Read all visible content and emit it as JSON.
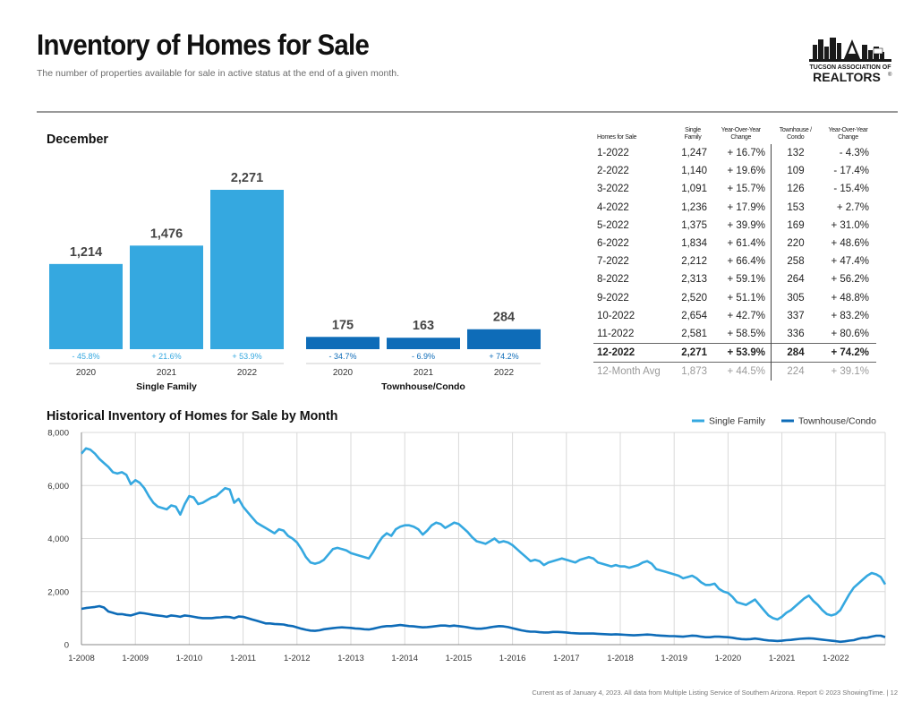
{
  "header": {
    "title": "Inventory of Homes for Sale",
    "subtitle": "The number of properties available for sale in active status at the end of a given month."
  },
  "logo": {
    "line1": "TUCSON ASSOCIATION OF",
    "line2": "REALTORS",
    "mark": "®"
  },
  "colors": {
    "single_family": "#35a8e0",
    "townhouse": "#0e6cb8",
    "bar_single": "#35a8e0",
    "bar_condo": "#0e6cb8"
  },
  "sections": {
    "december": "December",
    "historical": "Historical Inventory of Homes for Sale by Month"
  },
  "table": {
    "headers": [
      "Homes for Sale",
      "Single Family",
      "Year-Over-Year Change",
      "Townhouse / Condo",
      "Year-Over-Year Change"
    ],
    "rows": [
      [
        "1-2022",
        "1,247",
        "+ 16.7%",
        "132",
        "- 4.3%"
      ],
      [
        "2-2022",
        "1,140",
        "+ 19.6%",
        "109",
        "- 17.4%"
      ],
      [
        "3-2022",
        "1,091",
        "+ 15.7%",
        "126",
        "- 15.4%"
      ],
      [
        "4-2022",
        "1,236",
        "+ 17.9%",
        "153",
        "+ 2.7%"
      ],
      [
        "5-2022",
        "1,375",
        "+ 39.9%",
        "169",
        "+ 31.0%"
      ],
      [
        "6-2022",
        "1,834",
        "+ 61.4%",
        "220",
        "+ 48.6%"
      ],
      [
        "7-2022",
        "2,212",
        "+ 66.4%",
        "258",
        "+ 47.4%"
      ],
      [
        "8-2022",
        "2,313",
        "+ 59.1%",
        "264",
        "+ 56.2%"
      ],
      [
        "9-2022",
        "2,520",
        "+ 51.1%",
        "305",
        "+ 48.8%"
      ],
      [
        "10-2022",
        "2,654",
        "+ 42.7%",
        "337",
        "+ 83.2%"
      ],
      [
        "11-2022",
        "2,581",
        "+ 58.5%",
        "336",
        "+ 80.6%"
      ],
      [
        "12-2022",
        "2,271",
        "+ 53.9%",
        "284",
        "+ 74.2%"
      ]
    ],
    "avg": [
      "12-Month Avg",
      "1,873",
      "+ 44.5%",
      "224",
      "+ 39.1%"
    ]
  },
  "chart_data": [
    {
      "type": "bar",
      "title": "December",
      "groups": [
        {
          "name": "Single Family",
          "categories": [
            "2020",
            "2021",
            "2022"
          ],
          "values": [
            1214,
            1476,
            2271
          ],
          "value_labels": [
            "1,214",
            "1,476",
            "2,271"
          ],
          "changes": [
            "- 45.8%",
            "+ 21.6%",
            "+ 53.9%"
          ]
        },
        {
          "name": "Townhouse/Condo",
          "categories": [
            "2020",
            "2021",
            "2022"
          ],
          "values": [
            175,
            163,
            284
          ],
          "value_labels": [
            "175",
            "163",
            "284"
          ],
          "changes": [
            "- 34.7%",
            "- 6.9%",
            "+ 74.2%"
          ]
        }
      ]
    },
    {
      "type": "line",
      "title": "Historical Inventory of Homes for Sale by Month",
      "ylim": [
        0,
        8000
      ],
      "yticks": [
        0,
        2000,
        4000,
        6000,
        8000
      ],
      "ytick_labels": [
        "0",
        "2,000",
        "4,000",
        "6,000",
        "8,000"
      ],
      "xtick_labels": [
        "1-2008",
        "1-2009",
        "1-2010",
        "1-2011",
        "1-2012",
        "1-2013",
        "1-2014",
        "1-2015",
        "1-2016",
        "1-2017",
        "1-2018",
        "1-2019",
        "1-2020",
        "1-2021",
        "1-2022"
      ],
      "grid": true,
      "legend": "top-right",
      "x_start": "2008-01",
      "series": [
        {
          "name": "Single Family",
          "color": "#35a8e0",
          "values": [
            7200,
            7400,
            7350,
            7200,
            7000,
            6850,
            6700,
            6500,
            6450,
            6500,
            6400,
            6050,
            6200,
            6100,
            5900,
            5600,
            5350,
            5200,
            5150,
            5100,
            5250,
            5200,
            4900,
            5300,
            5600,
            5550,
            5300,
            5350,
            5450,
            5550,
            5600,
            5750,
            5900,
            5850,
            5350,
            5500,
            5200,
            5000,
            4800,
            4600,
            4500,
            4400,
            4300,
            4200,
            4350,
            4300,
            4100,
            4000,
            3850,
            3600,
            3300,
            3100,
            3050,
            3100,
            3200,
            3400,
            3600,
            3650,
            3600,
            3550,
            3450,
            3400,
            3350,
            3300,
            3250,
            3500,
            3800,
            4050,
            4200,
            4100,
            4350,
            4450,
            4500,
            4500,
            4450,
            4350,
            4150,
            4300,
            4500,
            4600,
            4550,
            4400,
            4500,
            4600,
            4550,
            4400,
            4250,
            4050,
            3900,
            3850,
            3800,
            3900,
            4000,
            3850,
            3900,
            3850,
            3750,
            3600,
            3450,
            3300,
            3150,
            3200,
            3150,
            3000,
            3100,
            3150,
            3200,
            3250,
            3200,
            3150,
            3100,
            3200,
            3250,
            3300,
            3250,
            3100,
            3050,
            3000,
            2950,
            3000,
            2950,
            2950,
            2900,
            2950,
            3000,
            3100,
            3150,
            3050,
            2850,
            2800,
            2750,
            2700,
            2650,
            2600,
            2500,
            2550,
            2600,
            2500,
            2350,
            2250,
            2250,
            2300,
            2100,
            2000,
            1950,
            1800,
            1600,
            1550,
            1500,
            1600,
            1700,
            1500,
            1300,
            1100,
            1000,
            950,
            1050,
            1200,
            1300,
            1450,
            1600,
            1750,
            1850,
            1650,
            1500,
            1300,
            1150,
            1100,
            1150,
            1300,
            1600,
            1900,
            2150,
            2300,
            2450,
            2600,
            2700,
            2650,
            2550,
            2271
          ]
        },
        {
          "name": "Townhouse/Condo",
          "color": "#0e6cb8",
          "values": [
            1350,
            1380,
            1400,
            1420,
            1450,
            1400,
            1250,
            1200,
            1150,
            1150,
            1120,
            1100,
            1150,
            1200,
            1180,
            1150,
            1120,
            1100,
            1080,
            1050,
            1100,
            1080,
            1050,
            1100,
            1080,
            1050,
            1020,
            1000,
            1000,
            1000,
            1020,
            1030,
            1050,
            1040,
            1000,
            1060,
            1050,
            1000,
            950,
            900,
            850,
            800,
            800,
            780,
            770,
            760,
            720,
            700,
            650,
            600,
            560,
            530,
            520,
            540,
            580,
            600,
            620,
            640,
            650,
            640,
            630,
            610,
            600,
            580,
            570,
            600,
            640,
            680,
            700,
            700,
            720,
            740,
            720,
            700,
            690,
            670,
            650,
            660,
            680,
            700,
            720,
            720,
            700,
            720,
            700,
            680,
            650,
            620,
            600,
            600,
            620,
            650,
            680,
            700,
            690,
            660,
            620,
            580,
            540,
            510,
            490,
            490,
            470,
            460,
            460,
            480,
            480,
            470,
            460,
            440,
            430,
            420,
            420,
            420,
            420,
            410,
            400,
            390,
            380,
            390,
            380,
            370,
            360,
            350,
            360,
            370,
            380,
            370,
            350,
            340,
            330,
            320,
            320,
            310,
            300,
            320,
            340,
            330,
            300,
            280,
            280,
            300,
            300,
            290,
            280,
            260,
            230,
            210,
            200,
            210,
            230,
            210,
            180,
            160,
            150,
            140,
            150,
            170,
            180,
            200,
            220,
            230,
            240,
            230,
            210,
            190,
            170,
            150,
            132,
            109,
            126,
            153,
            169,
            220,
            258,
            264,
            305,
            337,
            336,
            284
          ]
        }
      ]
    }
  ],
  "footer": "Current as of January 4, 2023. All data from Multiple Listing Service of Southern Arizona. Report © 2023 ShowingTime.  |  12"
}
